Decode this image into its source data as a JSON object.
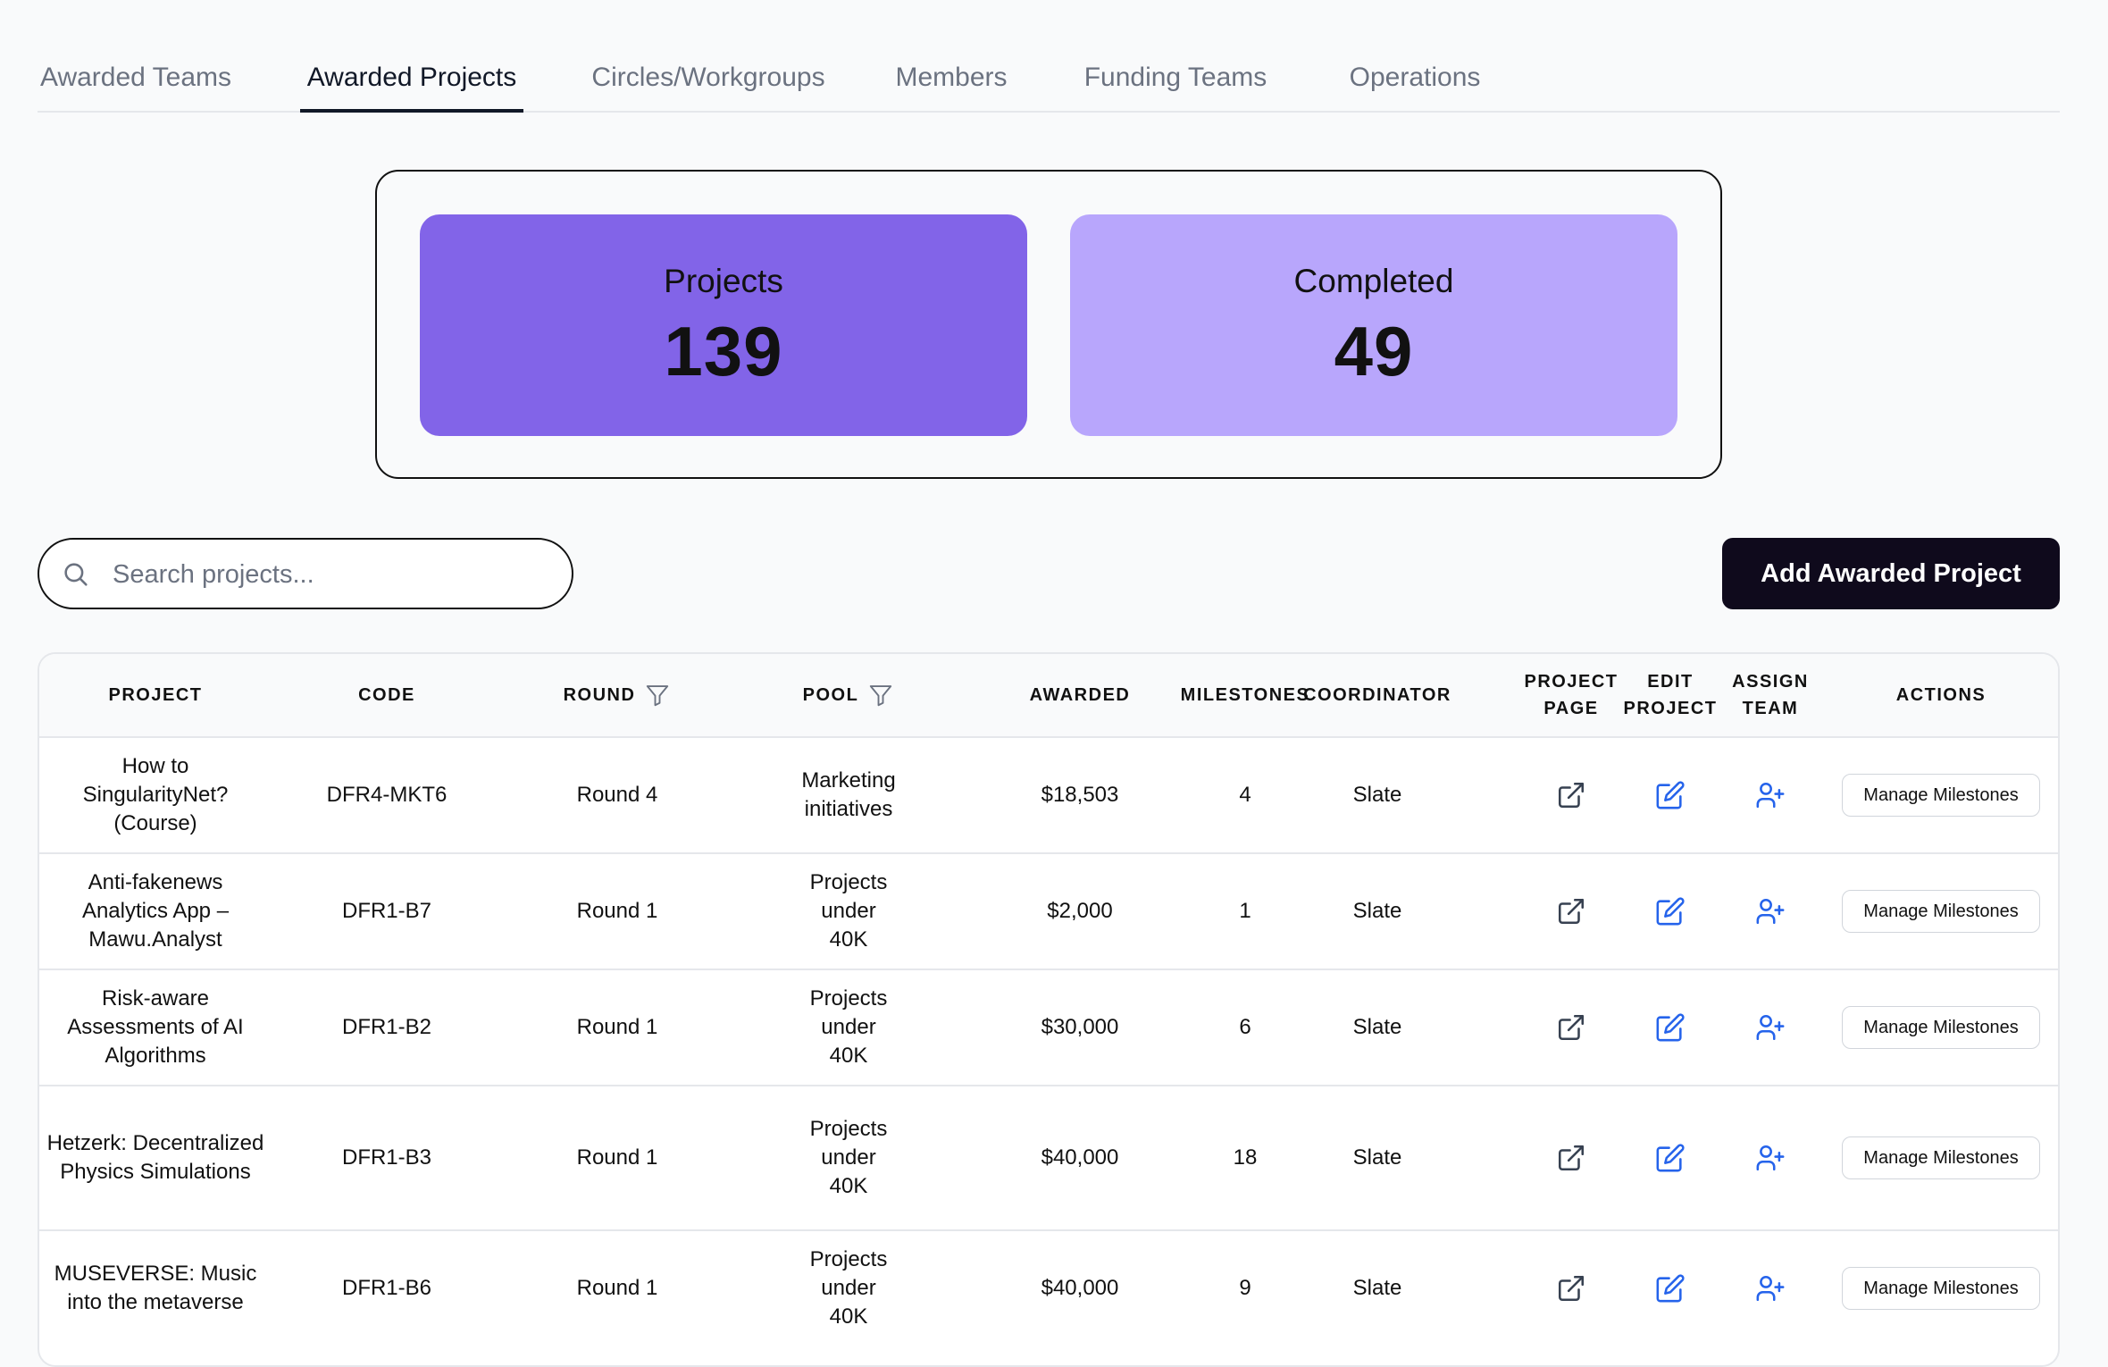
{
  "tabs": [
    {
      "label": "Awarded Teams",
      "active": false
    },
    {
      "label": "Awarded Projects",
      "active": true
    },
    {
      "label": "Circles/Workgroups",
      "active": false
    },
    {
      "label": "Members",
      "active": false
    },
    {
      "label": "Funding Teams",
      "active": false
    },
    {
      "label": "Operations",
      "active": false
    }
  ],
  "stats": {
    "projects": {
      "label": "Projects",
      "value": "139",
      "color": "#8264e8"
    },
    "completed": {
      "label": "Completed",
      "value": "49",
      "color": "#b8a6fc"
    }
  },
  "search": {
    "placeholder": "Search projects...",
    "icon": "search-icon"
  },
  "add_button": {
    "label": "Add Awarded Project"
  },
  "table": {
    "headers": {
      "project": "PROJECT",
      "code": "CODE",
      "round": "ROUND",
      "pool": "POOL",
      "awarded": "AWARDED",
      "milestones": "MILESTONES",
      "coordinator": "COORDINATOR",
      "project_page": "PROJECT PAGE",
      "edit_project": "EDIT PROJECT",
      "assign_team": "ASSIGN TEAM",
      "actions": "ACTIONS"
    },
    "row_action_label": "Manage Milestones",
    "row_icons": [
      "external-link-icon",
      "edit-icon",
      "user-plus-icon"
    ],
    "rows": [
      {
        "project": "How to SingularityNet? (Course)",
        "code": "DFR4-MKT6",
        "round": "Round 4",
        "pool": "Marketing initiatives",
        "awarded": "$18,503",
        "milestones": "4",
        "coordinator": "Slate"
      },
      {
        "project": "Anti-fakenews Analytics App – Mawu.Analyst",
        "code": "DFR1-B7",
        "round": "Round 1",
        "pool": "Projects under 40K",
        "awarded": "$2,000",
        "milestones": "1",
        "coordinator": "Slate"
      },
      {
        "project": "Risk-aware Assessments of AI Algorithms",
        "code": "DFR1-B2",
        "round": "Round 1",
        "pool": "Projects under 40K",
        "awarded": "$30,000",
        "milestones": "6",
        "coordinator": "Slate"
      },
      {
        "project": "Hetzerk: Decentralized Physics Simulations",
        "code": "DFR1-B3",
        "round": "Round 1",
        "pool": "Projects under 40K",
        "awarded": "$40,000",
        "milestones": "18",
        "coordinator": "Slate"
      },
      {
        "project": "MUSEVERSE: Music into the metaverse",
        "code": "DFR1-B6",
        "round": "Round 1",
        "pool": "Projects under 40K",
        "awarded": "$40,000",
        "milestones": "9",
        "coordinator": "Slate"
      }
    ]
  },
  "colors": {
    "accent_icon": "#2563eb",
    "dark_button": "#0f0a1c"
  }
}
